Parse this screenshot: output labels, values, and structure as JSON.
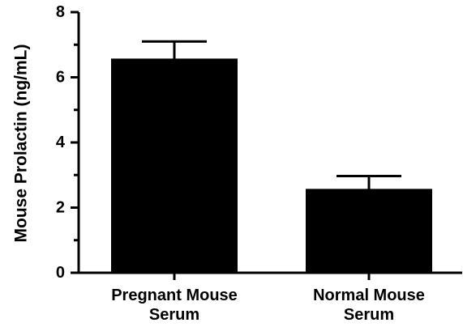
{
  "chart_data": {
    "type": "bar",
    "title": "",
    "xlabel": "",
    "ylabel": "Mouse Prolactin (ng/mL)",
    "ylim": [
      0,
      8
    ],
    "yticks": [
      0,
      2,
      4,
      6,
      8
    ],
    "categories": [
      [
        "Pregnant Mouse",
        "Serum"
      ],
      [
        "Normal Mouse",
        "Serum"
      ]
    ],
    "values": [
      6.55,
      2.55
    ],
    "error": [
      0.55,
      0.42
    ],
    "grid": false,
    "colors": {
      "bar": "#000000",
      "axis": "#000000"
    }
  }
}
